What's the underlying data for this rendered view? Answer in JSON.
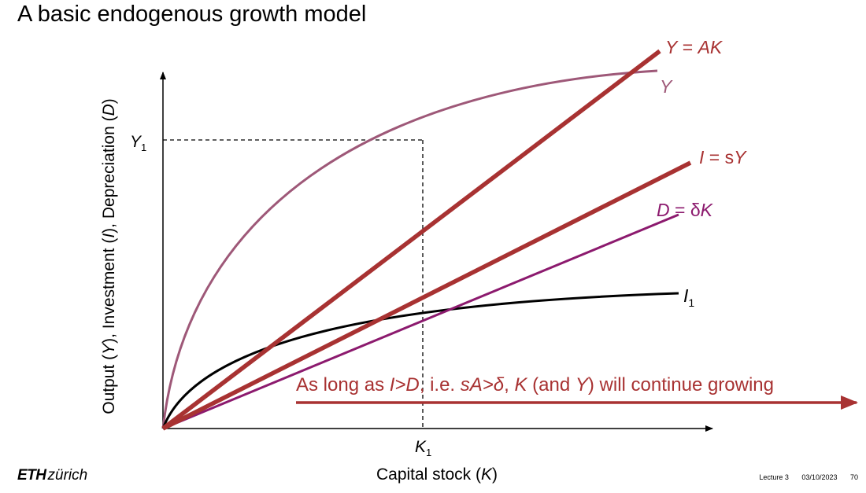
{
  "slide": {
    "title": "A basic endogenous growth model"
  },
  "axes": {
    "y_label_parts": [
      "Output (",
      "Y",
      "), Investment (",
      "I",
      "), Depreciation (",
      "D",
      ")"
    ],
    "x_label_parts": [
      "Capital stock (",
      "K",
      ")"
    ],
    "y_tick": {
      "main": "Y",
      "sub": "1"
    },
    "x_tick": {
      "main": "K",
      "sub": "1"
    }
  },
  "curve_labels": {
    "ak": [
      "Y",
      " = ",
      "AK"
    ],
    "y": "Y",
    "i": [
      "I",
      " = s",
      "Y"
    ],
    "d": [
      "D",
      " = δ",
      "K"
    ],
    "i1": {
      "main": "I",
      "sub": "1"
    }
  },
  "annotation": {
    "parts": [
      "As long as ",
      "I>D",
      ", i.e. ",
      "sA>δ",
      ", ",
      "K",
      " (and ",
      "Y",
      ") will continue growing"
    ]
  },
  "footer": {
    "logo_bold": "ETH",
    "logo_rest": "zürich",
    "lecture": "Lecture 3",
    "date": "03/10/2023",
    "page": "70"
  },
  "colors": {
    "ak_line": "#a83232",
    "y_curve": "#9e5878",
    "i_line": "#a83232",
    "d_line": "#8c1a6e",
    "i1_curve": "#000000",
    "annotation": "#a83232",
    "arrow": "#a83232"
  }
}
